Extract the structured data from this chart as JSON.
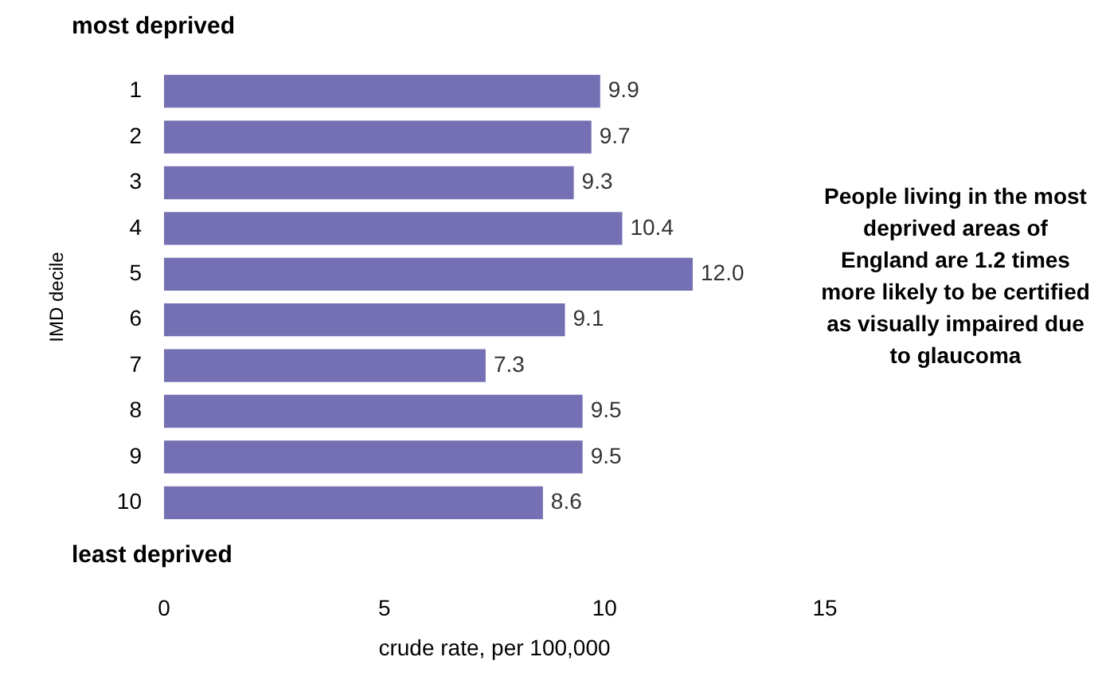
{
  "chart_data": {
    "type": "bar",
    "orientation": "horizontal",
    "ylabel": "IMD decile",
    "xlabel": "crude rate, per 100,000",
    "categories": [
      "1",
      "2",
      "3",
      "4",
      "5",
      "6",
      "7",
      "8",
      "9",
      "10"
    ],
    "values": [
      9.9,
      9.7,
      9.3,
      10.4,
      12.0,
      9.1,
      7.3,
      9.5,
      9.5,
      8.6
    ],
    "value_labels": [
      "9.9",
      "9.7",
      "9.3",
      "10.4",
      "12.0",
      "9.1",
      "7.3",
      "9.5",
      "9.5",
      "8.6"
    ],
    "color": "#7570b3",
    "xlim": [
      0,
      15
    ],
    "xticks": [
      0,
      5,
      10,
      15
    ],
    "grid": false,
    "legend": false,
    "annotations": [
      "most deprived",
      "least deprived",
      "People living in the most deprived areas of England are 1.2 times more likely to be certified as visually impaired due to glaucoma"
    ]
  }
}
